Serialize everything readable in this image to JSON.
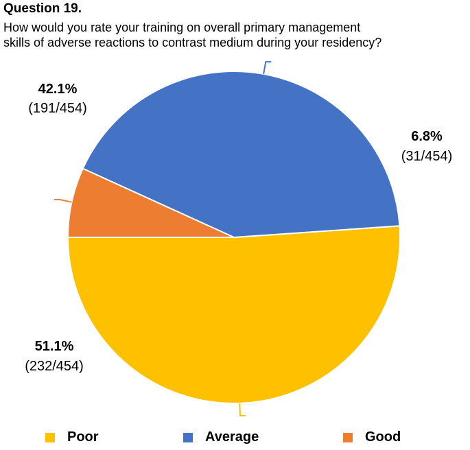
{
  "title": "Question 19.",
  "subtitle_lines": [
    "How would you rate your training on overall primary management",
    "skills of adverse reactions to contrast medium during your residency?"
  ],
  "chart_data": {
    "type": "pie",
    "title": "Question 19.",
    "slices": [
      {
        "name": "Poor",
        "value": 51.1,
        "pct_label": "51.1%",
        "count_label": "(232/454)",
        "color": "#FFC000"
      },
      {
        "name": "Average",
        "value": 42.1,
        "pct_label": "42.1%",
        "count_label": "(191/454)",
        "color": "#4472C4"
      },
      {
        "name": "Good",
        "value": 6.8,
        "pct_label": "6.8%",
        "count_label": "(31/454)",
        "color": "#ED7D31"
      }
    ],
    "legend_position": "bottom"
  }
}
